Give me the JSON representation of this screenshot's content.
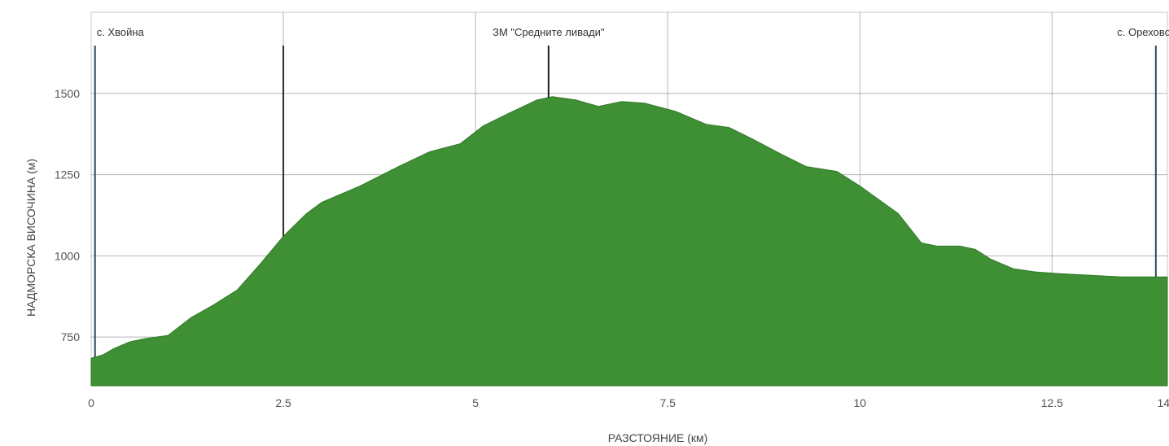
{
  "chart_data": {
    "type": "area",
    "xlabel": "РАЗСТОЯНИЕ (км)",
    "ylabel": "НАДМОРСКА ВИСОЧИНА (м)",
    "xlim": [
      0,
      14
    ],
    "ylim": [
      600,
      1750
    ],
    "x_ticks": [
      {
        "value": 0,
        "label": "0"
      },
      {
        "value": 2.5,
        "label": "2.5"
      },
      {
        "value": 5,
        "label": "5"
      },
      {
        "value": 7.5,
        "label": "7.5"
      },
      {
        "value": 10,
        "label": "10"
      },
      {
        "value": 12.5,
        "label": "12.5"
      },
      {
        "value": 13.95,
        "label": "14"
      }
    ],
    "y_ticks": [
      {
        "value": 750,
        "label": "750"
      },
      {
        "value": 1000,
        "label": "1000"
      },
      {
        "value": 1250,
        "label": "1250"
      },
      {
        "value": 1500,
        "label": "1500"
      }
    ],
    "grid": true,
    "fill_color": "#3f8f35",
    "series": [
      {
        "x": [
          0,
          0.15,
          0.3,
          0.5,
          0.7,
          1.0,
          1.3,
          1.6,
          1.9,
          2.2,
          2.5,
          2.8,
          3.0,
          3.5,
          4.0,
          4.4,
          4.8,
          5.1,
          5.4,
          5.8,
          6.0,
          6.3,
          6.6,
          6.9,
          7.2,
          7.6,
          8.0,
          8.3,
          8.6,
          9.0,
          9.3,
          9.7,
          10.0,
          10.5,
          10.8,
          11.0,
          11.3,
          11.5,
          11.7,
          12.0,
          12.3,
          12.6,
          13.0,
          13.4,
          13.8,
          14.0
        ],
        "y": [
          685,
          695,
          715,
          735,
          745,
          755,
          810,
          850,
          895,
          975,
          1060,
          1130,
          1165,
          1215,
          1275,
          1320,
          1345,
          1400,
          1435,
          1480,
          1490,
          1480,
          1460,
          1475,
          1470,
          1445,
          1405,
          1395,
          1360,
          1310,
          1275,
          1260,
          1215,
          1130,
          1040,
          1030,
          1030,
          1020,
          990,
          960,
          950,
          945,
          940,
          935,
          935,
          935
        ]
      }
    ],
    "markers": [
      {
        "x": 0.05,
        "label": "с. Хвойна",
        "label_anchor": "start",
        "line_color": "#2f4a58"
      },
      {
        "x": 2.5,
        "label": "",
        "line_color": "#3a2a1e"
      },
      {
        "x": 5.95,
        "label": "ЗМ \"Средните ливади\"",
        "label_anchor": "middle",
        "line_color": "#1a1a1a"
      },
      {
        "x": 13.85,
        "label": "с. Орехово",
        "label_anchor": "end",
        "line_color": "#2f4a58"
      }
    ]
  }
}
